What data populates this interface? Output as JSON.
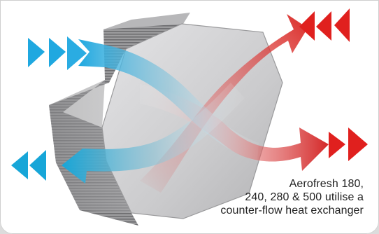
{
  "caption": {
    "line1": "Aerofresh 180,",
    "line2": "240, 280 & 500 utilise a",
    "line3": "counter-flow heat exchanger"
  },
  "colors": {
    "cold_air": "#1fa8e0",
    "warm_air": "#e0201e",
    "exchanger_face": "#c8c8ca",
    "background": "#ffffff"
  },
  "icons": {
    "cold_in_arrows": "double-chevron-right-icon",
    "cold_out_arrows": "double-chevron-left-icon",
    "warm_in_arrows": "double-chevron-left-icon",
    "warm_out_arrows": "double-chevron-right-icon"
  }
}
